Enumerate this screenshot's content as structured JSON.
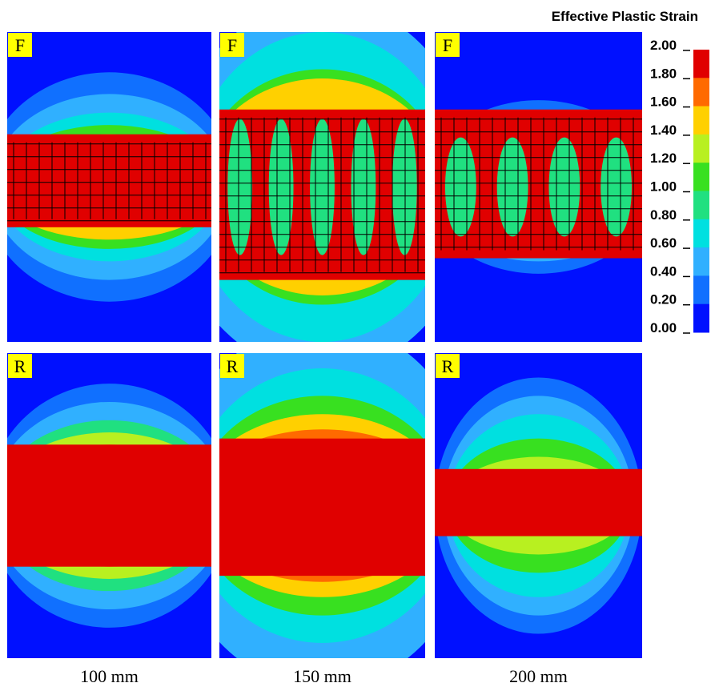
{
  "title": "Effective Plastic Strain",
  "colorbar": {
    "labels": [
      "2.00",
      "1.80",
      "1.60",
      "1.40",
      "1.20",
      "1.00",
      "0.80",
      "0.60",
      "0.40",
      "0.20",
      "0.00"
    ]
  },
  "panels": [
    {
      "label": "F"
    },
    {
      "label": "F"
    },
    {
      "label": "F"
    },
    {
      "label": "R"
    },
    {
      "label": "R"
    },
    {
      "label": "R"
    }
  ],
  "columns": [
    "100 mm",
    "150 mm",
    "200 mm"
  ]
}
